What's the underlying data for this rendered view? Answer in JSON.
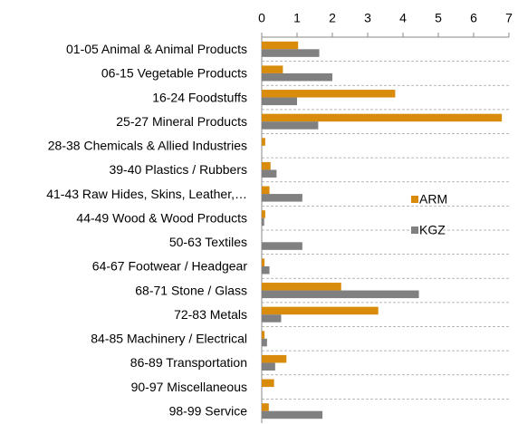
{
  "chart_data": {
    "type": "hbar",
    "categories": [
      "01-05  Animal & Animal Products",
      "06-15  Vegetable Products",
      "16-24  Foodstuffs",
      "25-27  Mineral Products",
      "28-38  Chemicals & Allied Industries",
      "39-40  Plastics / Rubbers",
      "41-43  Raw Hides, Skins, Leather,…",
      "44-49  Wood & Wood Products",
      "50-63  Textiles",
      "64-67  Footwear / Headgear",
      "68-71  Stone / Glass",
      "72-83  Metals",
      "84-85  Machinery / Electrical",
      "86-89  Transportation",
      "90-97  Miscellaneous",
      "98-99  Service"
    ],
    "series": [
      {
        "name": "ARM",
        "color": "#d98b0b",
        "values": [
          1.03,
          0.6,
          3.78,
          6.8,
          0.1,
          0.25,
          0.22,
          0.1,
          0,
          0.08,
          2.25,
          3.3,
          0.08,
          0.7,
          0.35,
          0.2
        ]
      },
      {
        "name": "KGZ",
        "color": "#808080",
        "values": [
          1.63,
          2.0,
          1.0,
          1.6,
          0,
          0.42,
          1.15,
          0.07,
          1.15,
          0.22,
          4.45,
          0.55,
          0.15,
          0.38,
          0,
          1.72
        ]
      }
    ],
    "xlim": [
      0,
      7
    ],
    "xticks": [
      0,
      1,
      2,
      3,
      4,
      5,
      6,
      7
    ],
    "grid": true,
    "legend": "right"
  }
}
